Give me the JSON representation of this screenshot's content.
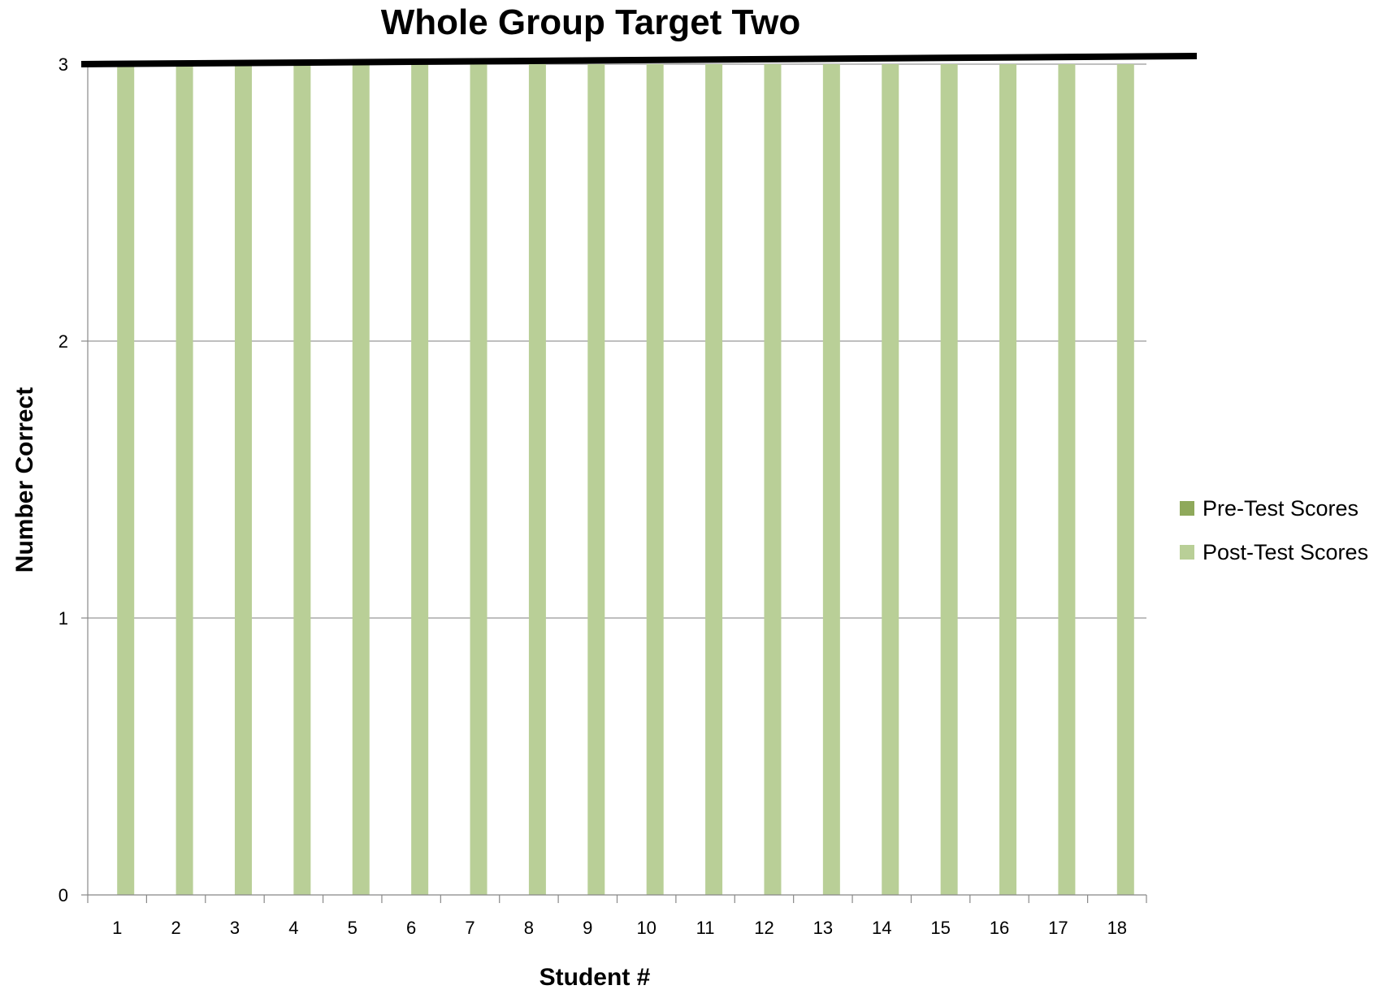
{
  "chart_data": {
    "type": "bar",
    "title": "Whole Group Target Two",
    "xlabel": "Student #",
    "ylabel": "Number Correct",
    "categories": [
      "1",
      "2",
      "3",
      "4",
      "5",
      "6",
      "7",
      "8",
      "9",
      "10",
      "11",
      "12",
      "13",
      "14",
      "15",
      "16",
      "17",
      "18"
    ],
    "series": [
      {
        "name": "Pre-Test Scores",
        "color": "#8fa95b",
        "values": [
          0,
          0,
          0,
          0,
          0,
          0,
          0,
          0,
          0,
          0,
          0,
          0,
          0,
          0,
          0,
          0,
          0,
          0
        ]
      },
      {
        "name": "Post-Test Scores",
        "color": "#b9cf97",
        "values": [
          3,
          3,
          3,
          3,
          3,
          3,
          3,
          3,
          3,
          3,
          3,
          3,
          3,
          3,
          3,
          3,
          3,
          3
        ]
      }
    ],
    "ylim": [
      0,
      3
    ],
    "yticks": [
      "0",
      "1",
      "2",
      "3"
    ],
    "grid": true,
    "legend_position": "right",
    "target_line": {
      "color": "#000000",
      "description": "thick line drawn across top of chart"
    },
    "colors": {
      "gridline": "#999999",
      "axis": "#888888"
    }
  }
}
